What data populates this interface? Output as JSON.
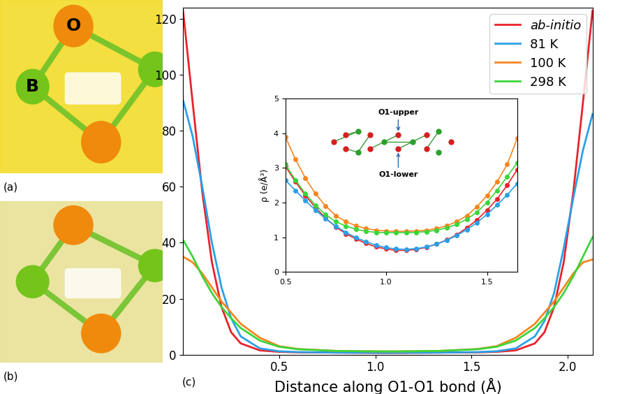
{
  "chart_data": [
    {
      "type": "line",
      "x_label": "Distance along O1-O1 bond (Å)",
      "annotations": [
        "(c)"
      ],
      "x": [
        0,
        0.05,
        0.1,
        0.15,
        0.2,
        0.25,
        0.3,
        0.4,
        0.5,
        0.6,
        0.8,
        1.0,
        1.065,
        1.13,
        1.33,
        1.53,
        1.63,
        1.73,
        1.83,
        1.88,
        1.93,
        1.98,
        2.03,
        2.08,
        2.13
      ],
      "series": [
        {
          "name": "ab-initio",
          "color": "#e8222a",
          "values": [
            123,
            90,
            58,
            33,
            17,
            8,
            4,
            1.5,
            1.0,
            0.8,
            0.7,
            0.62,
            0.6,
            0.62,
            0.7,
            0.8,
            1.0,
            1.5,
            4,
            8,
            17,
            33,
            58,
            90,
            123
          ]
        },
        {
          "name": "81 K",
          "color": "#2aa0e8",
          "values": [
            91,
            78,
            60,
            40,
            24,
            13,
            6.5,
            2.2,
            1.2,
            0.9,
            0.7,
            0.65,
            0.63,
            0.65,
            0.7,
            0.9,
            1.2,
            2.2,
            6.5,
            12,
            22,
            38,
            56,
            73,
            86
          ]
        },
        {
          "name": "100 K",
          "color": "#f5861f",
          "values": [
            35,
            33,
            29,
            24,
            19,
            15,
            11,
            6,
            3,
            2,
            1.3,
            1.15,
            1.15,
            1.15,
            1.3,
            2,
            3,
            6,
            11,
            15,
            19,
            24,
            29,
            33,
            34
          ]
        },
        {
          "name": "298 K",
          "color": "#3ad63a",
          "values": [
            41,
            35,
            28,
            22,
            17,
            13,
            9.5,
            5,
            2.8,
            1.9,
            1.3,
            1.15,
            1.13,
            1.15,
            1.3,
            1.9,
            2.8,
            5,
            9.5,
            13,
            17,
            22,
            28,
            35,
            42
          ]
        }
      ],
      "xlim": [
        0,
        2.13
      ],
      "xticks": [
        0.5,
        {
          "value": 1.0,
          "label": "1.0"
        },
        1.5,
        {
          "value": 2.0,
          "label": "2.0"
        }
      ],
      "ylim": [
        0,
        124
      ],
      "yticks": [
        0,
        20,
        40,
        60,
        80,
        100,
        120
      ],
      "legend": "upper right",
      "line_style": "solid"
    },
    {
      "type": "line",
      "y_label": "ρ (e/Å³)",
      "annotations": [
        "O1-upper",
        "O1-lower"
      ],
      "x": [
        0.5,
        0.55,
        0.6,
        0.65,
        0.7,
        0.75,
        0.8,
        0.85,
        0.9,
        0.95,
        1.0,
        1.05,
        1.1,
        1.15,
        1.2,
        1.25,
        1.3,
        1.35,
        1.4,
        1.45,
        1.5,
        1.55,
        1.6,
        1.65
      ],
      "series": [
        {
          "name": "ab-initio",
          "color": "#e8222a",
          "values": [
            3.05,
            2.6,
            2.2,
            1.85,
            1.55,
            1.3,
            1.1,
            0.95,
            0.82,
            0.72,
            0.66,
            0.62,
            0.62,
            0.65,
            0.71,
            0.8,
            0.92,
            1.07,
            1.27,
            1.5,
            1.78,
            2.1,
            2.5,
            2.95
          ]
        },
        {
          "name": "81 K",
          "color": "#2aa0e8",
          "values": [
            2.65,
            2.35,
            2.05,
            1.78,
            1.53,
            1.32,
            1.14,
            0.99,
            0.87,
            0.77,
            0.7,
            0.66,
            0.65,
            0.67,
            0.72,
            0.8,
            0.91,
            1.05,
            1.22,
            1.42,
            1.66,
            1.93,
            2.22,
            2.55
          ]
        },
        {
          "name": "100 K",
          "color": "#f5861f",
          "values": [
            3.9,
            3.25,
            2.7,
            2.25,
            1.9,
            1.62,
            1.45,
            1.33,
            1.25,
            1.2,
            1.18,
            1.17,
            1.17,
            1.18,
            1.2,
            1.25,
            1.33,
            1.45,
            1.62,
            1.88,
            2.2,
            2.6,
            3.1,
            3.85
          ]
        },
        {
          "name": "298 K",
          "color": "#3ad63a",
          "values": [
            3.1,
            2.65,
            2.25,
            1.92,
            1.65,
            1.45,
            1.32,
            1.23,
            1.17,
            1.14,
            1.13,
            1.13,
            1.13,
            1.14,
            1.16,
            1.2,
            1.27,
            1.37,
            1.52,
            1.72,
            2.0,
            2.35,
            2.75,
            3.15
          ]
        }
      ],
      "xlim": [
        0.5,
        1.65
      ],
      "xticks": [
        0.5,
        {
          "value": 1.0,
          "label": "1.0"
        },
        1.5
      ],
      "ylim": [
        0,
        5
      ],
      "yticks": [
        0,
        1,
        2,
        3,
        4,
        5
      ],
      "marker": "o",
      "line_style": "solid"
    }
  ],
  "images": [
    {
      "label": "(a)",
      "atoms": [
        "O",
        "B"
      ]
    },
    {
      "label": "(b)"
    }
  ]
}
